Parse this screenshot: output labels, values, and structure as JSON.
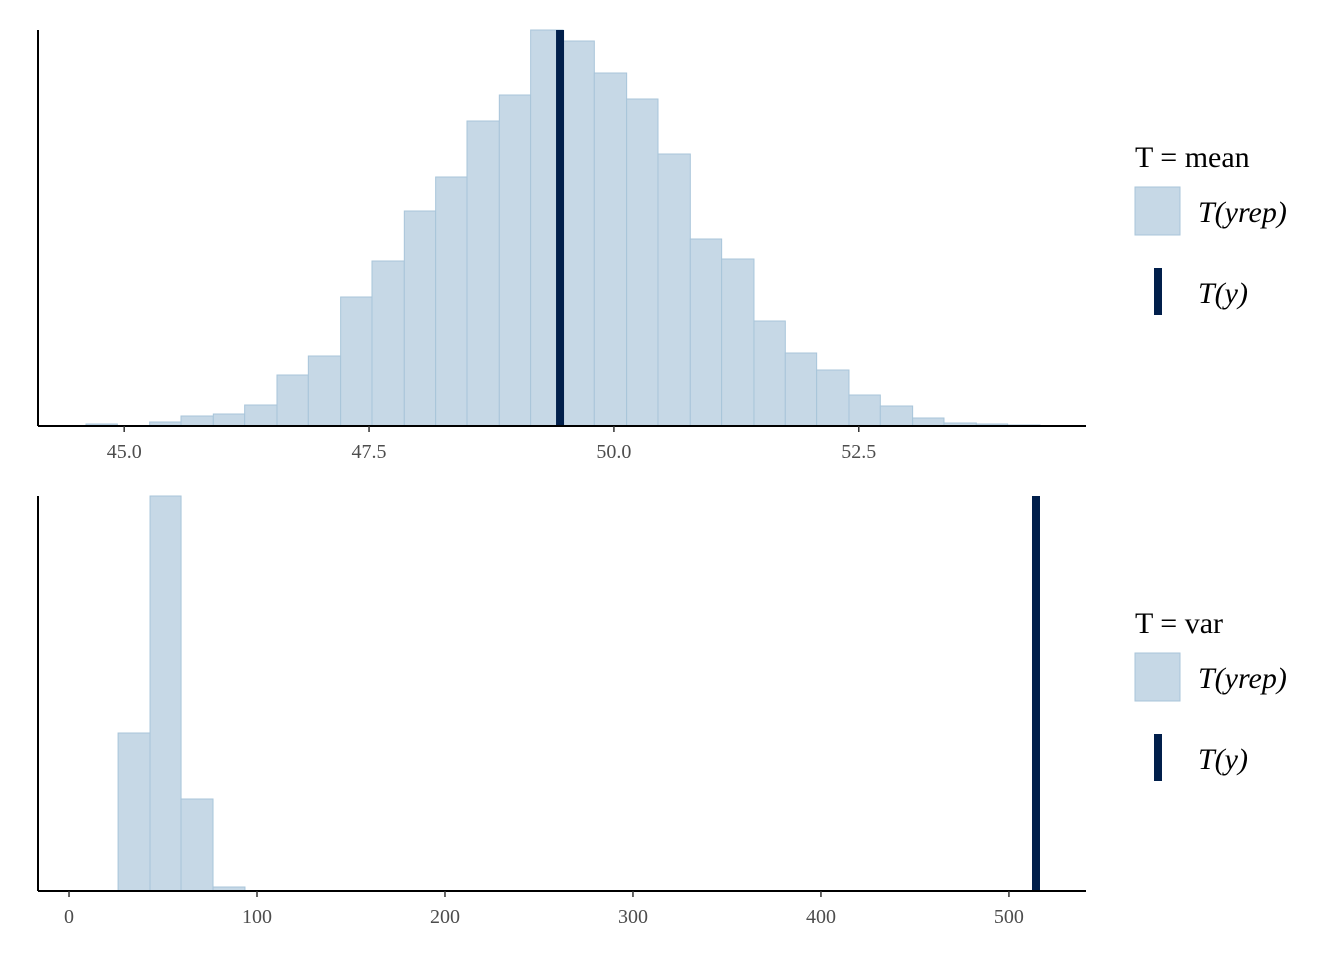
{
  "chart_data": [
    {
      "type": "histogram",
      "legend_title": "T = mean",
      "bins": [
        44.61,
        44.93,
        45.26,
        45.58,
        45.91,
        46.23,
        46.56,
        46.88,
        47.21,
        47.53,
        47.86,
        48.18,
        48.5,
        48.83,
        49.15,
        49.48,
        49.8,
        50.13,
        50.45,
        50.78,
        51.1,
        51.43,
        51.75,
        52.07,
        52.4,
        52.72,
        53.05,
        53.37,
        53.7,
        54.02,
        54.35
      ],
      "series": [
        {
          "name": "T(yrep)",
          "color": "#c6d8e6",
          "edge_color": "#a8c5da",
          "values": [
            2,
            0,
            4,
            10,
            12,
            21,
            51,
            70,
            129,
            165,
            215,
            249,
            305,
            331,
            396,
            385,
            353,
            327,
            272,
            187,
            167,
            105,
            73,
            56,
            31,
            20,
            8,
            3,
            2,
            1
          ]
        }
      ],
      "observed": {
        "name": "T(y)",
        "value": 49.45,
        "color": "#011f4b"
      },
      "xlim": [
        44.12,
        54.82
      ],
      "ylim": [
        0,
        396
      ],
      "xticks": [
        {
          "value": 45,
          "label": "45.0"
        },
        47.5,
        {
          "value": 50,
          "label": "50.0"
        },
        52.5
      ]
    },
    {
      "type": "histogram",
      "legend_title": "T = var",
      "bins": [
        26.1,
        43.1,
        59.6,
        76.6,
        93.6
      ],
      "series": [
        {
          "name": "T(yrep)",
          "color": "#c6d8e6",
          "edge_color": "#a8c5da",
          "values": [
            158,
            395,
            92,
            4
          ]
        }
      ],
      "observed": {
        "name": "T(y)",
        "value": 514.4,
        "color": "#011f4b"
      },
      "xlim": [
        -16.5,
        541
      ],
      "ylim": [
        0,
        395
      ],
      "xticks": [
        0,
        100,
        200,
        300,
        400,
        500
      ]
    }
  ]
}
